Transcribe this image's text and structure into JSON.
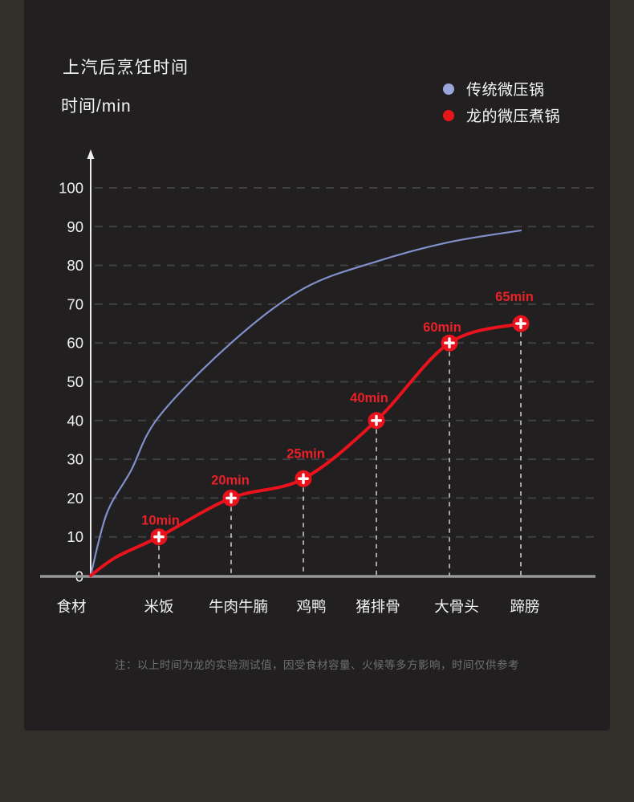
{
  "page": {
    "title_line1": "上汽后烹饪时间",
    "title_line2": "时间/min"
  },
  "legend": [
    {
      "label": "传统微压锅",
      "color": "#9AA7DB"
    },
    {
      "label": "龙的微压煮锅",
      "color": "#E8161D"
    }
  ],
  "footnote": "注：以上时间为龙的实验测试值，因受食材容量、火候等多方影响，时间仅供参考",
  "colors": {
    "panel_bg": "#211F1F",
    "outer_bg": "#332F2B",
    "blue_line": "#8290CB",
    "red_line": "#E8131C",
    "point_label": "#EA2128",
    "gridline": "#414141",
    "axis_white": "#EDEDED",
    "baseline_gray": "#969696",
    "drop_line": "#C9C9C9",
    "tick_label": "#F2F2F2"
  },
  "chart_data": {
    "type": "line",
    "title": "上汽后烹饪时间",
    "ylabel": "时间/min",
    "xlabel": "",
    "categories": [
      "食材",
      "米饭",
      "牛肉牛腩",
      "鸡鸭",
      "猪排骨",
      "大骨头",
      "蹄膀"
    ],
    "yticks": [
      0,
      10,
      20,
      30,
      40,
      50,
      60,
      70,
      80,
      90,
      100
    ],
    "ylim": [
      0,
      110
    ],
    "grid": "dashed-horizontal",
    "legend_position": "top-right",
    "series": [
      {
        "name": "传统微压锅",
        "type": "smooth-line",
        "markers": false,
        "values": [
          0,
          41,
          60,
          74,
          81,
          86,
          89
        ]
      },
      {
        "name": "龙的微压煮锅",
        "type": "smooth-line",
        "markers": true,
        "values": [
          0,
          10,
          20,
          25,
          40,
          60,
          65
        ],
        "point_labels": [
          "",
          "10min",
          "20min",
          "25min",
          "40min",
          "60min",
          "65min"
        ]
      }
    ]
  }
}
